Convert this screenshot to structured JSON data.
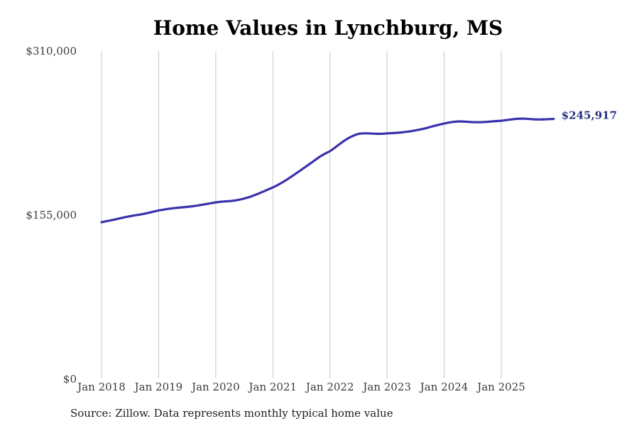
{
  "source_note": "Source: Zillow. Data represents monthly typical home value",
  "colors": {
    "line": "#3a32aa",
    "annotation": "#233080",
    "grid": "#c8c8c8",
    "tick_text": "#3b3b3b",
    "title_text": "#000000",
    "background": "#ffffff"
  },
  "chart_data": {
    "type": "line",
    "title": "Home Values in Lynchburg, MS",
    "xlabel": "",
    "ylabel": "",
    "x_tick_labels": [
      "Jan 2018",
      "Jan 2019",
      "Jan 2020",
      "Jan 2021",
      "Jan 2022",
      "Jan 2023",
      "Jan 2024",
      "Jan 2025"
    ],
    "y_tick_labels": [
      "$0",
      "$155,000",
      "$310,000"
    ],
    "y_tick_values": [
      0,
      155000,
      310000
    ],
    "ylim": [
      0,
      310000
    ],
    "grid": "vertical-only",
    "legend": "none",
    "frequency": "monthly",
    "x_start": "Jan 2018",
    "x_end": "Dec 2025",
    "latest_value_label": "$245,917",
    "latest_value": 245917,
    "series": [
      {
        "name": "Typical home value",
        "values": [
          148300,
          149200,
          150100,
          151100,
          152100,
          153100,
          154000,
          154800,
          155500,
          156300,
          157300,
          158400,
          159400,
          160200,
          160900,
          161500,
          162000,
          162400,
          162800,
          163300,
          163900,
          164700,
          165500,
          166300,
          167100,
          167600,
          168000,
          168300,
          168800,
          169600,
          170700,
          172000,
          173600,
          175400,
          177300,
          179200,
          181200,
          183400,
          185900,
          188700,
          191700,
          194800,
          197900,
          201000,
          204200,
          207500,
          210600,
          213200,
          215400,
          218600,
          222000,
          225300,
          228100,
          230200,
          231800,
          232300,
          232300,
          232000,
          231800,
          231900,
          232200,
          232500,
          232800,
          233200,
          233700,
          234300,
          235100,
          236000,
          237000,
          238200,
          239400,
          240500,
          241600,
          242500,
          243200,
          243600,
          243500,
          243200,
          242900,
          242800,
          242900,
          243200,
          243600,
          243900,
          244200,
          244800,
          245400,
          245900,
          246200,
          246100,
          245800,
          245500,
          245400,
          245500,
          245700,
          245917
        ]
      }
    ]
  }
}
